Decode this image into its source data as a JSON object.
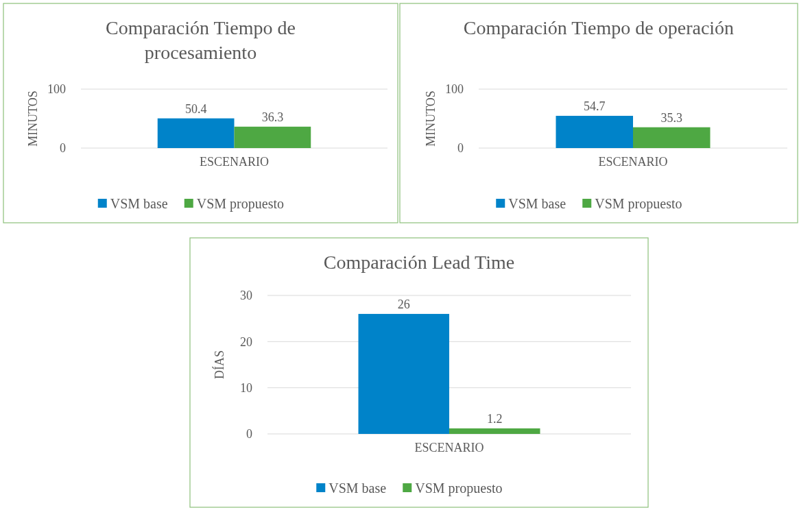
{
  "chart_data": [
    {
      "type": "bar",
      "title": "Comparación Tiempo de procesamiento",
      "ylabel": "MINUTOS",
      "categories": [
        "ESCENARIO"
      ],
      "series": [
        {
          "name": "VSM base",
          "color": "#0083c9",
          "values": [
            50.4
          ]
        },
        {
          "name": "VSM propuesto",
          "color": "#4ea843",
          "values": [
            36.3
          ]
        }
      ],
      "ylim": [
        0,
        100
      ],
      "yticks": [
        0,
        100
      ],
      "grid": "y",
      "legend": "bottom",
      "data_labels": true
    },
    {
      "type": "bar",
      "title": "Comparación Tiempo de operación",
      "ylabel": "MINUTOS",
      "categories": [
        "ESCENARIO"
      ],
      "series": [
        {
          "name": "VSM base",
          "color": "#0083c9",
          "values": [
            54.7
          ]
        },
        {
          "name": "VSM propuesto",
          "color": "#4ea843",
          "values": [
            35.3
          ]
        }
      ],
      "ylim": [
        0,
        100
      ],
      "yticks": [
        0,
        100
      ],
      "grid": "y",
      "legend": "bottom",
      "data_labels": true
    },
    {
      "type": "bar",
      "title": "Comparación Lead Time",
      "ylabel": "DÍAS",
      "categories": [
        "ESCENARIO"
      ],
      "series": [
        {
          "name": "VSM base",
          "color": "#0083c9",
          "values": [
            26
          ]
        },
        {
          "name": "VSM propuesto",
          "color": "#4ea843",
          "values": [
            1.2
          ]
        }
      ],
      "ylim": [
        0,
        30
      ],
      "yticks": [
        0,
        10,
        20,
        30
      ],
      "grid": "y",
      "legend": "bottom",
      "data_labels": true
    }
  ]
}
